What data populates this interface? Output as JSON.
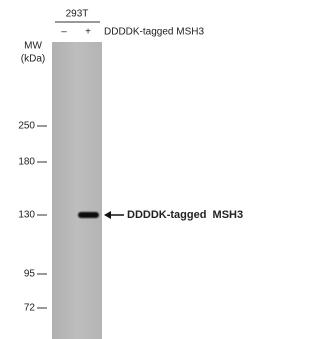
{
  "blot": {
    "cell_line": "293T",
    "lanes": [
      "–",
      "+"
    ],
    "lane_label": "DDDDK-tagged MSH3",
    "mw_label": "MW",
    "mw_unit": "(kDa)",
    "markers": [
      "250",
      "180",
      "130",
      "95",
      "72"
    ],
    "band_label": "DDDDK-tagged  MSH3"
  }
}
